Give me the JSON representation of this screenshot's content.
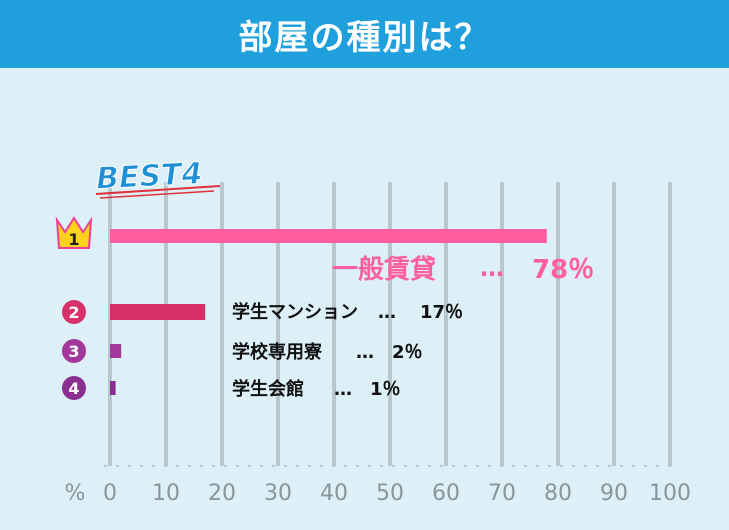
{
  "title": "部屋の種別は？",
  "best_label": "BEST4",
  "axis_unit": "%",
  "ranks": [
    "1",
    "2",
    "3",
    "4"
  ],
  "separator": "…",
  "colors": {
    "header": "#1fa0dc",
    "background": "#ddf0f7",
    "grid": "#b9c7cd",
    "axis_text": "#8a959b",
    "rank1": "#ff5fa0",
    "rank2": "#d7306a",
    "rank3": "#a2389c",
    "rank4": "#8a2e92"
  },
  "chart_data": {
    "type": "bar",
    "orientation": "horizontal",
    "categories": [
      "一般賃貸",
      "学生マンション",
      "学校専用寮",
      "学生会館"
    ],
    "values": [
      78,
      17,
      2,
      1
    ],
    "value_labels": [
      "78％",
      "17％",
      "2％",
      "1％"
    ],
    "xlim": [
      0,
      100
    ],
    "xticks": [
      0,
      10,
      20,
      30,
      40,
      50,
      60,
      70,
      80,
      90,
      100
    ],
    "xlabel": "%",
    "grid": "vertical"
  }
}
